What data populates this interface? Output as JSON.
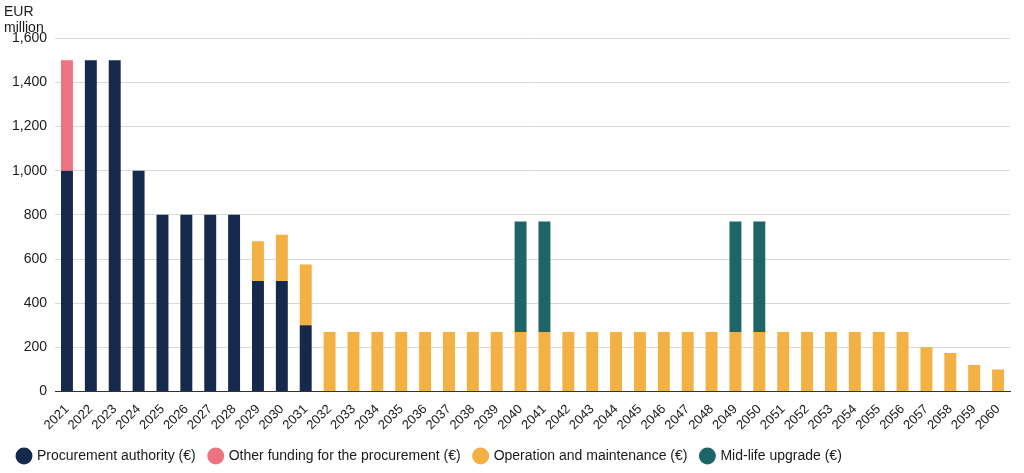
{
  "chart_data": {
    "type": "bar",
    "y_label": "EUR million",
    "categories": [
      "2021",
      "2022",
      "2023",
      "2024",
      "2025",
      "2026",
      "2027",
      "2028",
      "2029",
      "2030",
      "2031",
      "2032",
      "2033",
      "2034",
      "2035",
      "2036",
      "2037",
      "2038",
      "2039",
      "2040",
      "2041",
      "2042",
      "2043",
      "2044",
      "2045",
      "2046",
      "2047",
      "2048",
      "2049",
      "2050",
      "2051",
      "2052",
      "2053",
      "2054",
      "2055",
      "2056",
      "2057",
      "2058",
      "2059",
      "2060"
    ],
    "series": [
      {
        "name": "Procurement authority (€)",
        "color": "#15294d",
        "values": [
          1000,
          1500,
          1500,
          1000,
          800,
          800,
          800,
          800,
          500,
          500,
          300,
          0,
          0,
          0,
          0,
          0,
          0,
          0,
          0,
          0,
          0,
          0,
          0,
          0,
          0,
          0,
          0,
          0,
          0,
          0,
          0,
          0,
          0,
          0,
          0,
          0,
          0,
          0,
          0,
          0
        ]
      },
      {
        "name": "Other funding for the procurement (€)",
        "color": "#ee7381",
        "values": [
          500,
          0,
          0,
          0,
          0,
          0,
          0,
          0,
          0,
          0,
          0,
          0,
          0,
          0,
          0,
          0,
          0,
          0,
          0,
          0,
          0,
          0,
          0,
          0,
          0,
          0,
          0,
          0,
          0,
          0,
          0,
          0,
          0,
          0,
          0,
          0,
          0,
          0,
          0,
          0
        ]
      },
      {
        "name": "Operation and maintenance (€)",
        "color": "#f3b043",
        "values": [
          0,
          0,
          0,
          0,
          0,
          0,
          0,
          0,
          180,
          210,
          275,
          270,
          270,
          270,
          270,
          270,
          270,
          270,
          270,
          270,
          270,
          270,
          270,
          270,
          270,
          270,
          270,
          270,
          270,
          270,
          270,
          270,
          270,
          270,
          270,
          270,
          200,
          175,
          120,
          100
        ]
      },
      {
        "name": "Mid-life upgrade (€)",
        "color": "#1e6468",
        "values": [
          0,
          0,
          0,
          0,
          0,
          0,
          0,
          0,
          0,
          0,
          0,
          0,
          0,
          0,
          0,
          0,
          0,
          0,
          0,
          500,
          500,
          0,
          0,
          0,
          0,
          0,
          0,
          0,
          500,
          500,
          0,
          0,
          0,
          0,
          0,
          0,
          0,
          0,
          0,
          0
        ]
      }
    ],
    "ylim": [
      0,
      1600
    ],
    "yticks": [
      0,
      200,
      400,
      600,
      800,
      {
        "value": 1000,
        "label": "1,000"
      },
      {
        "value": 1200,
        "label": "1,200"
      },
      {
        "value": 1400,
        "label": "1,400"
      },
      {
        "value": 1600,
        "label": "1,600"
      }
    ],
    "stacked": true,
    "grid": true,
    "legend": "bottom"
  }
}
